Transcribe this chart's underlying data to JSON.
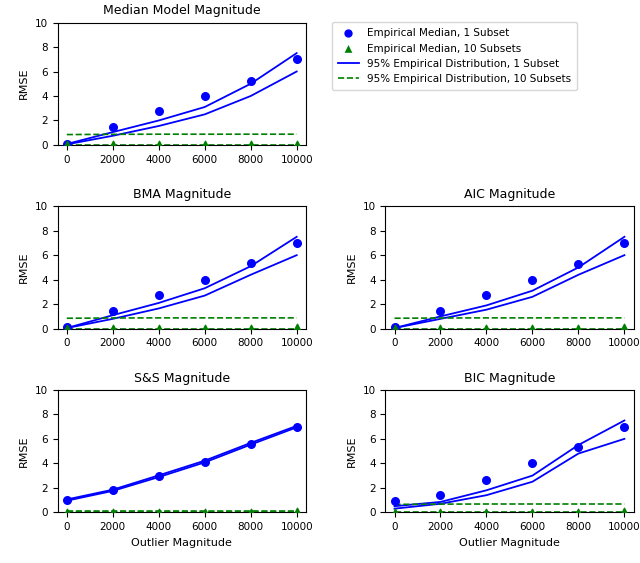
{
  "titles": [
    "Median Model Magnitude",
    "BMA Magnitude",
    "AIC Magnitude",
    "S&S Magnitude",
    "BIC Magnitude"
  ],
  "x_ticks": [
    0,
    2000,
    4000,
    6000,
    8000,
    10000
  ],
  "x_label": "Outlier Magnitude",
  "y_label": "RMSE",
  "ylim": [
    0,
    10
  ],
  "blue_color": "#0000FF",
  "green_color": "#008000",
  "panels": {
    "Median Model Magnitude": {
      "median_1": [
        0.1,
        1.45,
        2.75,
        4.0,
        5.25,
        7.0
      ],
      "median_10": [
        0.05,
        0.05,
        0.05,
        0.05,
        0.05,
        0.1
      ],
      "line_upper_1": [
        0.08,
        1.05,
        2.0,
        3.1,
        5.0,
        7.5
      ],
      "line_lower_1": [
        0.05,
        0.75,
        1.55,
        2.5,
        4.0,
        6.0
      ],
      "line_upper_10": [
        0.85,
        0.87,
        0.88,
        0.88,
        0.88,
        0.88
      ],
      "line_lower_10": [
        0.0,
        0.0,
        0.0,
        0.0,
        0.0,
        0.0
      ],
      "x_vals": [
        0,
        2000,
        4000,
        6000,
        8000,
        10000
      ]
    },
    "BMA Magnitude": {
      "median_1": [
        0.1,
        1.45,
        2.75,
        4.0,
        5.4,
        7.0
      ],
      "median_10": [
        0.05,
        0.05,
        0.05,
        0.05,
        0.05,
        0.1
      ],
      "line_upper_1": [
        0.05,
        1.1,
        2.1,
        3.3,
        5.1,
        7.5
      ],
      "line_lower_1": [
        0.05,
        0.8,
        1.65,
        2.7,
        4.4,
        6.0
      ],
      "line_upper_10": [
        0.85,
        0.87,
        0.88,
        0.88,
        0.88,
        0.88
      ],
      "line_lower_10": [
        0.0,
        0.0,
        0.0,
        0.0,
        0.0,
        0.0
      ],
      "x_vals": [
        0,
        2000,
        4000,
        6000,
        8000,
        10000
      ]
    },
    "AIC Magnitude": {
      "median_1": [
        0.1,
        1.45,
        2.75,
        4.0,
        5.25,
        7.0
      ],
      "median_10": [
        0.05,
        0.05,
        0.05,
        0.05,
        0.05,
        0.1
      ],
      "line_upper_1": [
        0.05,
        1.0,
        1.9,
        3.1,
        5.0,
        7.5
      ],
      "line_lower_1": [
        0.05,
        0.8,
        1.55,
        2.6,
        4.4,
        6.0
      ],
      "line_upper_10": [
        0.85,
        0.87,
        0.88,
        0.88,
        0.88,
        0.88
      ],
      "line_lower_10": [
        0.0,
        0.0,
        0.0,
        0.0,
        0.0,
        0.0
      ],
      "x_vals": [
        0,
        2000,
        4000,
        6000,
        8000,
        10000
      ]
    },
    "S&S Magnitude": {
      "median_1": [
        1.0,
        1.8,
        2.95,
        4.15,
        5.6,
        7.0
      ],
      "median_10": [
        0.05,
        0.05,
        0.05,
        0.05,
        0.05,
        0.1
      ],
      "line_upper_1": [
        1.05,
        1.85,
        3.02,
        4.22,
        5.67,
        7.06
      ],
      "line_lower_1": [
        0.95,
        1.75,
        2.88,
        4.08,
        5.53,
        6.94
      ],
      "line_upper_10": [
        0.1,
        0.1,
        0.1,
        0.1,
        0.1,
        0.1
      ],
      "line_lower_10": [
        0.0,
        0.0,
        0.0,
        0.0,
        0.0,
        0.0
      ],
      "x_vals": [
        0,
        2000,
        4000,
        6000,
        8000,
        10000
      ]
    },
    "BIC Magnitude": {
      "median_1": [
        0.9,
        1.45,
        2.65,
        4.05,
        5.3,
        7.0
      ],
      "median_10": [
        0.05,
        0.05,
        0.05,
        0.05,
        0.05,
        0.1
      ],
      "line_upper_1": [
        0.5,
        0.85,
        1.8,
        3.0,
        5.5,
        7.5
      ],
      "line_lower_1": [
        0.3,
        0.7,
        1.4,
        2.5,
        4.8,
        6.0
      ],
      "line_upper_10": [
        0.65,
        0.67,
        0.68,
        0.68,
        0.68,
        0.68
      ],
      "line_lower_10": [
        0.0,
        0.0,
        0.0,
        0.0,
        0.0,
        0.0
      ],
      "x_vals": [
        0,
        2000,
        4000,
        6000,
        8000,
        10000
      ]
    }
  },
  "legend_labels": [
    "Empirical Median, 1 Subset",
    "Empirical Median, 10 Subsets",
    "95% Empirical Distribution, 1 Subset",
    "95% Empirical Distribution, 10 Subsets"
  ]
}
